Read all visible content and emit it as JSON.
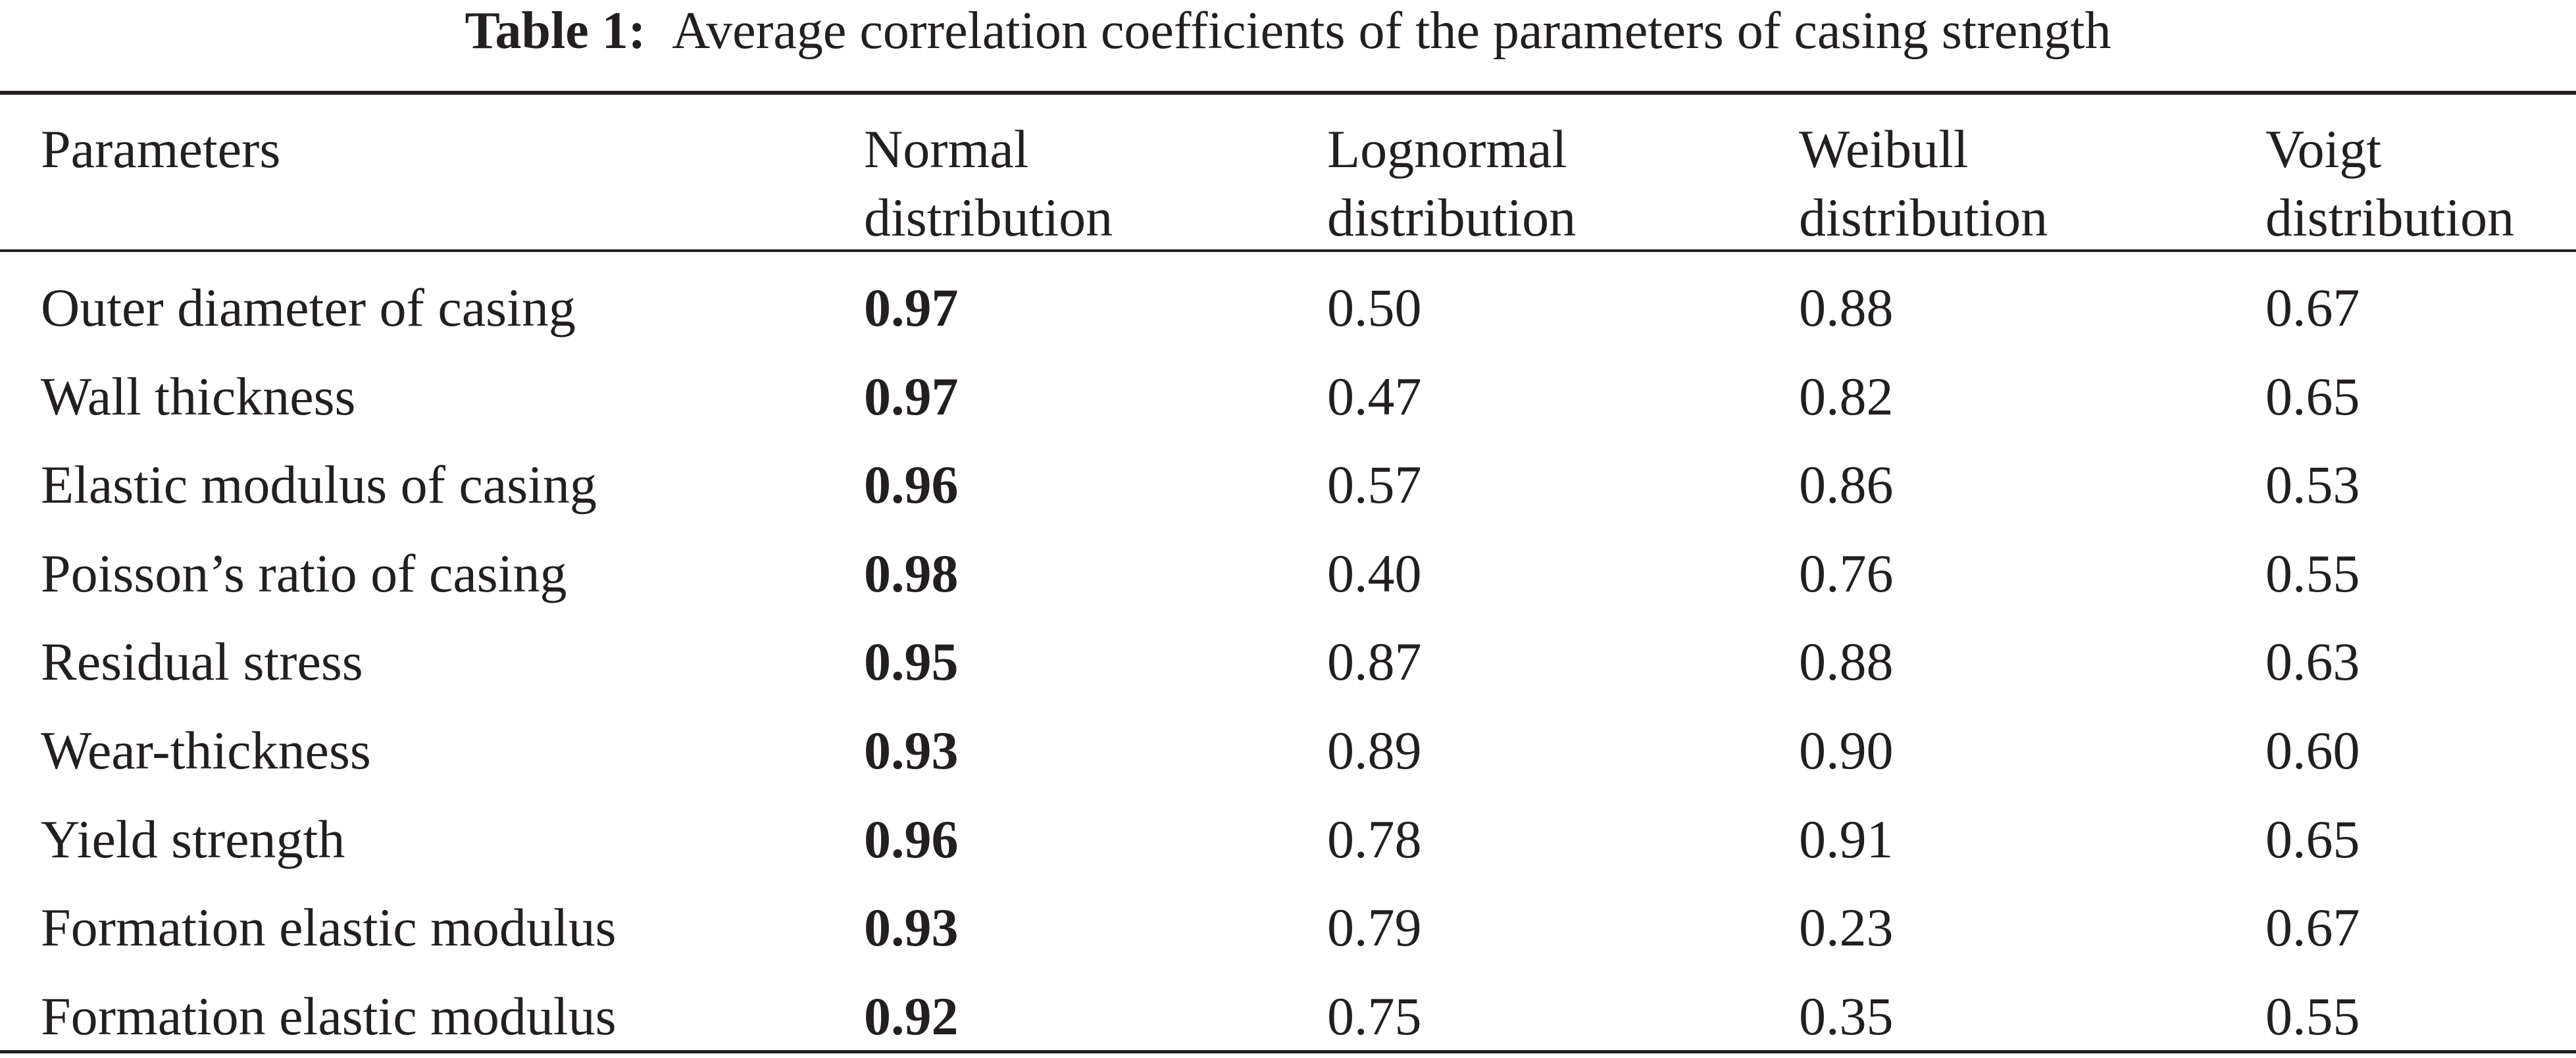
{
  "caption": {
    "label": "Table 1:",
    "text": "Average correlation coefficients of the parameters of casing strength"
  },
  "headers": [
    [
      "Parameters",
      ""
    ],
    [
      "Normal",
      "distribution"
    ],
    [
      "Lognormal",
      "distribution"
    ],
    [
      "Weibull",
      "distribution"
    ],
    [
      "Voigt",
      "distribution"
    ]
  ],
  "rows": [
    [
      "Outer diameter of casing",
      "0.97",
      "0.50",
      "0.88",
      "0.67"
    ],
    [
      "Wall thickness",
      "0.97",
      "0.47",
      "0.82",
      "0.65"
    ],
    [
      "Elastic modulus of casing",
      "0.96",
      "0.57",
      "0.86",
      "0.53"
    ],
    [
      "Poisson’s ratio of casing",
      "0.98",
      "0.40",
      "0.76",
      "0.55"
    ],
    [
      "Residual stress",
      "0.95",
      "0.87",
      "0.88",
      "0.63"
    ],
    [
      "Wear-thickness",
      "0.93",
      "0.89",
      "0.90",
      "0.60"
    ],
    [
      "Yield strength",
      "0.96",
      "0.78",
      "0.91",
      "0.65"
    ],
    [
      "Formation elastic modulus",
      "0.93",
      "0.79",
      "0.23",
      "0.67"
    ],
    [
      "Formation elastic modulus",
      "0.92",
      "0.75",
      "0.35",
      "0.55"
    ]
  ]
}
